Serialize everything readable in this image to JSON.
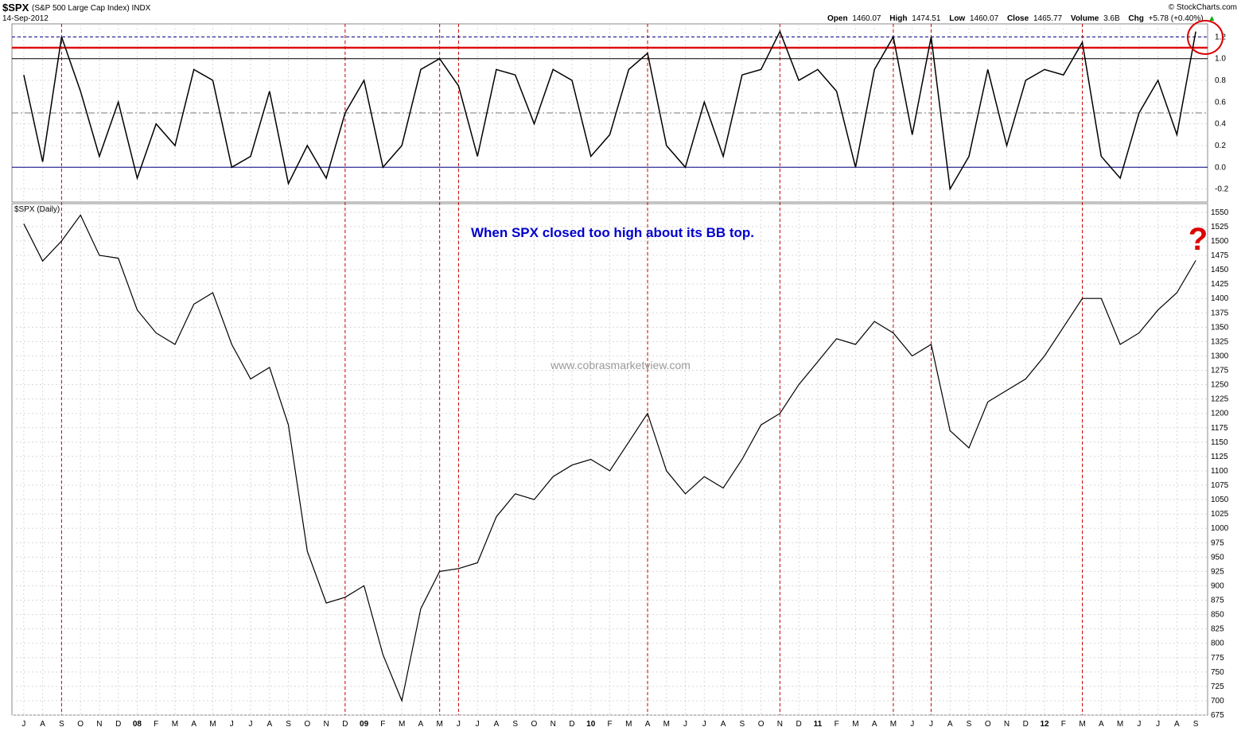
{
  "header": {
    "symbol": "$SPX",
    "description": "(S&P 500 Large Cap Index) INDX",
    "date": "14-Sep-2012",
    "source": "© StockCharts.com",
    "ohlc": {
      "open_label": "Open",
      "open": "1460.07",
      "high_label": "High",
      "high": "1474.51",
      "low_label": "Low",
      "low": "1460.07",
      "close_label": "Close",
      "close": "1465.77",
      "volume_label": "Volume",
      "volume": "3.6B",
      "chg_label": "Chg",
      "chg": "+5.78 (+0.40%)",
      "chg_arrow": "▲"
    }
  },
  "colors": {
    "price_line": "#000000",
    "event_line": "#cc0000",
    "threshold_line": "#dd1111",
    "dashed_upper": "#000080",
    "zero_line": "#000080",
    "annotation_text": "#0000cc",
    "question_mark": "#dd0000",
    "grid": "#d8d8d8"
  },
  "annotation": "When SPX closed too high about its BB top.",
  "watermark": "www.cobrasmarketview.com",
  "question_mark": "?",
  "chart_data": [
    {
      "type": "line",
      "panel": "upper indicator",
      "ylim": [
        -0.32,
        1.32
      ],
      "yticks": [
        -0.2,
        0.0,
        0.2,
        0.4,
        0.6,
        0.8,
        1.0,
        1.2
      ],
      "ytick_labels": [
        "-0.2",
        "0.0",
        "0.2",
        "0.4",
        "0.6",
        "0.8",
        "1.0",
        "1.2"
      ],
      "reference_lines": [
        {
          "value": 1.2,
          "style": "dashed",
          "color": "#000080"
        },
        {
          "value": 1.1,
          "style": "solid",
          "color": "#dd1111"
        },
        {
          "value": 1.0,
          "style": "solid",
          "color": "#000000"
        },
        {
          "value": 0.5,
          "style": "dashdot",
          "color": "#777777"
        },
        {
          "value": 0.0,
          "style": "solid",
          "color": "#000080"
        }
      ],
      "x": [
        "2007-07",
        "2007-08",
        "2007-09",
        "2007-10",
        "2007-11",
        "2007-12",
        "2008-01",
        "2008-02",
        "2008-03",
        "2008-04",
        "2008-05",
        "2008-06",
        "2008-07",
        "2008-08",
        "2008-09",
        "2008-10",
        "2008-11",
        "2008-12",
        "2009-01",
        "2009-02",
        "2009-03",
        "2009-04",
        "2009-05",
        "2009-06",
        "2009-07",
        "2009-08",
        "2009-09",
        "2009-10",
        "2009-11",
        "2009-12",
        "2010-01",
        "2010-02",
        "2010-03",
        "2010-04",
        "2010-05",
        "2010-06",
        "2010-07",
        "2010-08",
        "2010-09",
        "2010-10",
        "2010-11",
        "2010-12",
        "2011-01",
        "2011-02",
        "2011-03",
        "2011-04",
        "2011-05",
        "2011-06",
        "2011-07",
        "2011-08",
        "2011-09",
        "2011-10",
        "2011-11",
        "2011-12",
        "2012-01",
        "2012-02",
        "2012-03",
        "2012-04",
        "2012-05",
        "2012-06",
        "2012-07",
        "2012-08",
        "2012-09"
      ],
      "values": [
        0.85,
        0.05,
        1.2,
        0.7,
        0.1,
        0.6,
        -0.1,
        0.4,
        0.2,
        0.9,
        0.8,
        0.0,
        0.1,
        0.7,
        -0.15,
        0.2,
        -0.1,
        0.5,
        0.8,
        0.0,
        0.2,
        0.9,
        1.0,
        0.75,
        0.1,
        0.9,
        0.85,
        0.4,
        0.9,
        0.8,
        0.1,
        0.3,
        0.9,
        1.05,
        0.2,
        0.0,
        0.6,
        0.1,
        0.85,
        0.9,
        1.25,
        0.8,
        0.9,
        0.7,
        0.0,
        0.9,
        1.2,
        0.3,
        1.2,
        -0.2,
        0.1,
        0.9,
        0.2,
        0.8,
        0.9,
        0.85,
        1.15,
        0.1,
        -0.1,
        0.5,
        0.8,
        0.3,
        1.25
      ]
    },
    {
      "type": "line",
      "panel": "lower price",
      "series": [
        {
          "name": "$SPX (Daily)"
        }
      ],
      "ylim": [
        675,
        1565
      ],
      "yticks": [
        675,
        700,
        725,
        750,
        775,
        800,
        825,
        850,
        875,
        900,
        925,
        950,
        975,
        1000,
        1025,
        1050,
        1075,
        1100,
        1125,
        1150,
        1175,
        1200,
        1225,
        1250,
        1275,
        1300,
        1325,
        1350,
        1375,
        1400,
        1425,
        1450,
        1475,
        1500,
        1525,
        1550
      ],
      "x": [
        "2007-07",
        "2007-08",
        "2007-09",
        "2007-10",
        "2007-11",
        "2007-12",
        "2008-01",
        "2008-02",
        "2008-03",
        "2008-04",
        "2008-05",
        "2008-06",
        "2008-07",
        "2008-08",
        "2008-09",
        "2008-10",
        "2008-11",
        "2008-12",
        "2009-01",
        "2009-02",
        "2009-03",
        "2009-04",
        "2009-05",
        "2009-06",
        "2009-07",
        "2009-08",
        "2009-09",
        "2009-10",
        "2009-11",
        "2009-12",
        "2010-01",
        "2010-02",
        "2010-03",
        "2010-04",
        "2010-05",
        "2010-06",
        "2010-07",
        "2010-08",
        "2010-09",
        "2010-10",
        "2010-11",
        "2010-12",
        "2011-01",
        "2011-02",
        "2011-03",
        "2011-04",
        "2011-05",
        "2011-06",
        "2011-07",
        "2011-08",
        "2011-09",
        "2011-10",
        "2011-11",
        "2011-12",
        "2012-01",
        "2012-02",
        "2012-03",
        "2012-04",
        "2012-05",
        "2012-06",
        "2012-07",
        "2012-08",
        "2012-09"
      ],
      "values": [
        1530,
        1465,
        1500,
        1545,
        1475,
        1470,
        1380,
        1340,
        1320,
        1390,
        1410,
        1320,
        1260,
        1280,
        1180,
        960,
        870,
        880,
        900,
        780,
        700,
        860,
        925,
        930,
        940,
        1020,
        1060,
        1050,
        1090,
        1110,
        1120,
        1100,
        1150,
        1200,
        1100,
        1060,
        1090,
        1070,
        1120,
        1180,
        1200,
        1250,
        1290,
        1330,
        1320,
        1360,
        1340,
        1300,
        1320,
        1170,
        1140,
        1220,
        1240,
        1260,
        1300,
        1350,
        1400,
        1400,
        1320,
        1340,
        1380,
        1410,
        1466
      ]
    }
  ],
  "x_axis_labels": [
    "J",
    "A",
    "S",
    "O",
    "N",
    "D",
    "08",
    "F",
    "M",
    "A",
    "M",
    "J",
    "J",
    "A",
    "S",
    "O",
    "N",
    "D",
    "09",
    "F",
    "M",
    "A",
    "M",
    "J",
    "J",
    "A",
    "S",
    "O",
    "N",
    "D",
    "10",
    "F",
    "M",
    "A",
    "M",
    "J",
    "J",
    "A",
    "S",
    "O",
    "N",
    "D",
    "11",
    "F",
    "M",
    "A",
    "M",
    "J",
    "J",
    "A",
    "S",
    "O",
    "N",
    "D",
    "12",
    "F",
    "M",
    "A",
    "M",
    "J",
    "J",
    "A",
    "S"
  ],
  "event_dates": [
    "2007-09",
    "2008-12",
    "2009-05",
    "2009-06",
    "2010-04",
    "2010-11",
    "2011-05",
    "2011-07",
    "2012-03"
  ]
}
